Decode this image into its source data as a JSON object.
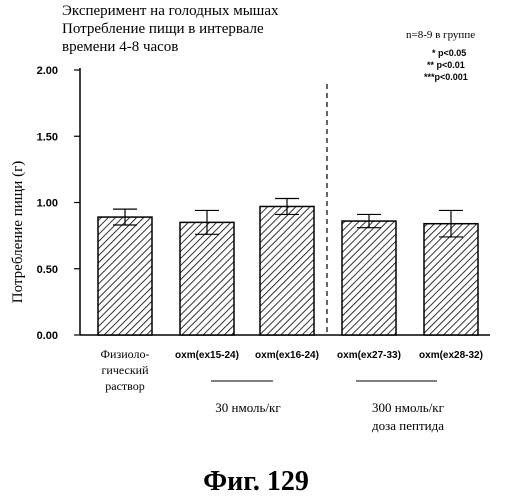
{
  "chart_data": {
    "type": "bar",
    "title_lines": [
      "Эксперимент на голодных мышах",
      "Потребление пищи в интервале",
      "времени 4-8 часов"
    ],
    "ylabel": "Потребление пищи (г)",
    "ylim": [
      0,
      2.0
    ],
    "y_ticks": [
      "0.00",
      "0.50",
      "1.00",
      "1.50",
      "2.00"
    ],
    "y_tick_values": [
      0,
      0.5,
      1.0,
      1.5,
      2.0
    ],
    "categories": [
      [
        "Физиоло-",
        "гический",
        "раствор"
      ],
      [
        "oxm(ex15-24)"
      ],
      [
        "oxm(ex16-24)"
      ],
      [
        "oxm(ex27-33)"
      ],
      [
        "oxm(ex28-32)"
      ]
    ],
    "values": [
      0.89,
      0.85,
      0.97,
      0.86,
      0.84
    ],
    "errors": [
      0.06,
      0.09,
      0.06,
      0.05,
      0.1
    ],
    "bar_fill": "hatched",
    "group_labels": [
      {
        "lines": [
          "30 нмоль/кг"
        ]
      },
      {
        "lines": [
          "300 нмоль/кг",
          "доза пептида"
        ]
      }
    ],
    "legend": {
      "n_text": "n=8-9 в группе",
      "sig": [
        "* p<0.05",
        "** p<0.01",
        "***p<0.001"
      ]
    },
    "divider": "dashed"
  },
  "caption": "Фиг. 129"
}
